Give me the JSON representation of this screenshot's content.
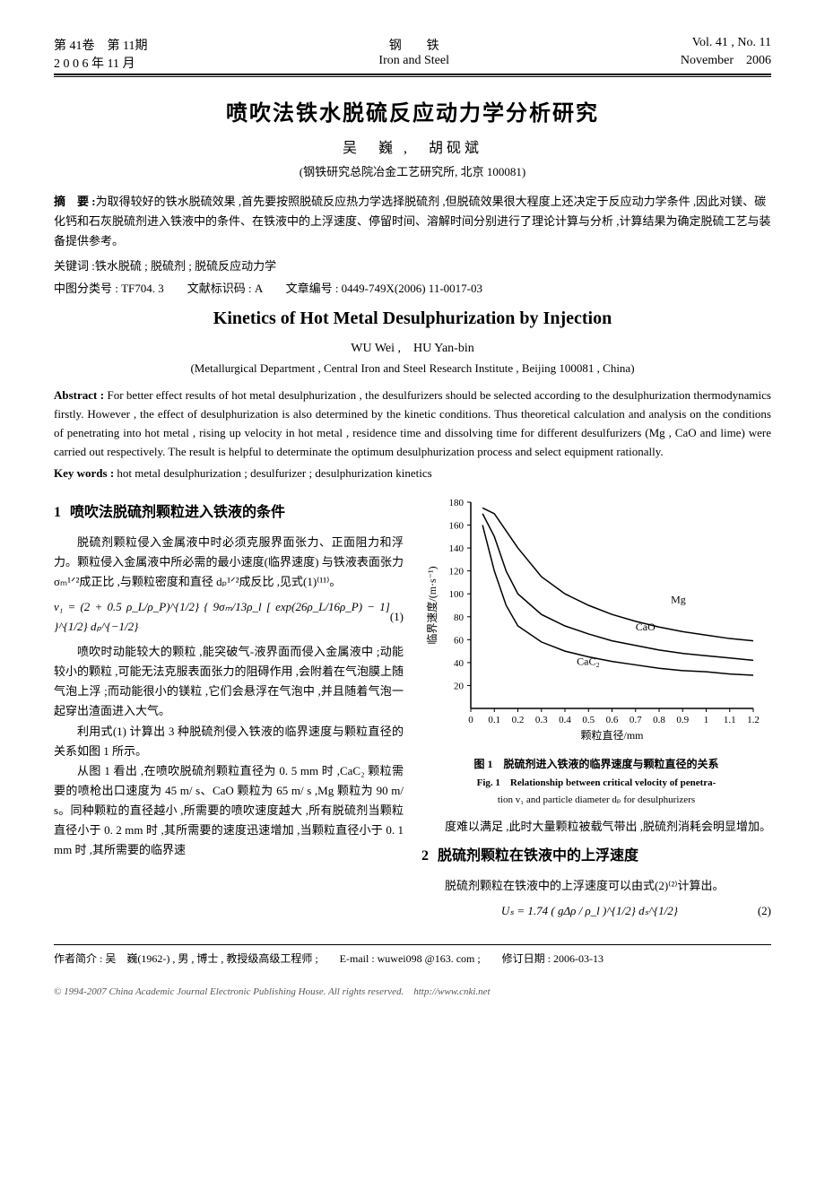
{
  "header": {
    "vol_issue_cn": "第 41卷　第 11期",
    "date_cn": "2 0 0 6 年 11 月",
    "journal_cn": "钢　　铁",
    "journal_en": "Iron and Steel",
    "vol_en": "Vol. 41 , No. 11",
    "date_en": "November　2006"
  },
  "title_cn": "喷吹法铁水脱硫反应动力学分析研究",
  "authors_cn": "吴　巍 ,　胡砚斌",
  "affil_cn": "(钢铁研究总院冶金工艺研究所, 北京 100081)",
  "abstract_cn_label": "摘　要 :",
  "abstract_cn": "为取得较好的铁水脱硫效果 ,首先要按照脱硫反应热力学选择脱硫剂 ,但脱硫效果很大程度上还决定于反应动力学条件 ,因此对镁、碳化钙和石灰脱硫剂进入铁液中的条件、在铁液中的上浮速度、停留时间、溶解时间分别进行了理论计算与分析 ,计算结果为确定脱硫工艺与装备提供参考。",
  "keywords_cn_label": "关键词 :",
  "keywords_cn": "铁水脱硫 ; 脱硫剂 ; 脱硫反应动力学",
  "class_cn": "中图分类号 : TF704. 3　　文献标识码 : A　　文章编号 : 0449-749X(2006) 11-0017-03",
  "title_en": "Kinetics of Hot Metal Desulphurization by Injection",
  "authors_en": "WU Wei ,　HU Yan-bin",
  "affil_en": "(Metallurgical Department , Central Iron and Steel Research Institute , Beijing 100081 , China)",
  "abstract_en_label": "Abstract :",
  "abstract_en": "For better effect results of hot metal desulphurization , the desulfurizers should be selected according to the desulphurization thermodynamics firstly. However , the effect of desulphurization is also determined by the kinetic conditions. Thus theoretical calculation and analysis on the conditions of penetrating into hot metal , rising up velocity in hot metal , residence time and dissolving time for different desulfurizers (Mg , CaO and lime) were carried out respectively. The result is helpful to determinate the optimum desulphurization process and select equipment rationally.",
  "keywords_en_label": "Key words :",
  "keywords_en": "hot metal desulphurization ; desulfurizer ; desulphurization kinetics",
  "sec1": {
    "num": "1",
    "title": "喷吹法脱硫剂颗粒进入铁液的条件",
    "p1": "脱硫剂颗粒侵入金属液中时必须克服界面张力、正面阻力和浮力。颗粒侵入金属液中所必需的最小速度(临界速度) 与铁液表面张力σₘ¹ᐟ²成正比 ,与颗粒密度和直径 dₚ¹ᐟ²成反比 ,见式(1)⁽¹¹⁾。",
    "eq1_body": "v₁ = (2 + 0.5 ρ_L/ρ_P)^{1/2} { 9σₘ/13ρ_l [ exp(26ρ_L/16ρ_P) − 1] }^{1/2} dₚ^{−1/2}",
    "eq1_num": "(1)",
    "p2": "喷吹时动能较大的颗粒 ,能突破气-液界面而侵入金属液中 ;动能较小的颗粒 ,可能无法克服表面张力的阻碍作用 ,会附着在气泡膜上随气泡上浮 ;而动能很小的镁粒 ,它们会悬浮在气泡中 ,并且随着气泡一起穿出渣面进入大气。",
    "p3": "利用式(1) 计算出 3 种脱硫剂侵入铁液的临界速度与颗粒直径的关系如图 1 所示。",
    "p4": "从图 1 看出 ,在喷吹脱硫剂颗粒直径为 0. 5 mm 时 ,CaC₂ 颗粒需要的喷枪出口速度为 45 m/ s、CaO 颗粒为 65 m/ s ,Mg 颗粒为 90 m/ s。同种颗粒的直径越小 ,所需要的喷吹速度越大 ,所有脱硫剂当颗粒直径小于 0. 2 mm 时 ,其所需要的速度迅速增加 ,当颗粒直径小于 0. 1 mm 时 ,其所需要的临界速"
  },
  "right": {
    "p1": "度难以满足 ,此时大量颗粒被载气带出 ,脱硫剂消耗会明显增加。"
  },
  "sec2": {
    "num": "2",
    "title": "脱硫剂颗粒在铁液中的上浮速度",
    "p1": "脱硫剂颗粒在铁液中的上浮速度可以由式(2)⁽²⁾计算出。",
    "eq2_body": "Uₛ = 1.74 ( gΔρ / ρ_l )^{1/2} dₛ^{1/2}",
    "eq2_num": "(2)"
  },
  "fig1": {
    "caption_cn": "图 1　脱硫剂进入铁液的临界速度与颗粒直径的关系",
    "caption_en_1": "Fig. 1　Relationship between critical velocity of penetra-",
    "caption_en_2": "tion v₁ and particle diameter dₚ for desulphurizers",
    "xlabel": "颗粒直径/mm",
    "ylabel": "临界速度/(m·s⁻¹)",
    "xlim": [
      0,
      1.2
    ],
    "ylim": [
      0,
      180
    ],
    "xticks": [
      0,
      0.1,
      0.2,
      0.3,
      0.4,
      0.5,
      0.6,
      0.7,
      0.8,
      0.9,
      1.0,
      1.1,
      1.2
    ],
    "yticks": [
      20,
      40,
      60,
      80,
      100,
      120,
      140,
      160,
      180
    ],
    "colors": {
      "axis": "#000000",
      "bg": "#ffffff",
      "line": "#000000"
    },
    "line_width": 1.5,
    "series": [
      {
        "label": "Mg",
        "label_x": 0.85,
        "label_y": 92,
        "x": [
          0.05,
          0.1,
          0.15,
          0.2,
          0.3,
          0.4,
          0.5,
          0.6,
          0.7,
          0.8,
          0.9,
          1.0,
          1.1,
          1.2
        ],
        "y": [
          175,
          170,
          155,
          140,
          115,
          100,
          90,
          82,
          76,
          71,
          67,
          64,
          61,
          59
        ]
      },
      {
        "label": "CaO",
        "label_x": 0.7,
        "label_y": 68,
        "x": [
          0.05,
          0.1,
          0.15,
          0.2,
          0.3,
          0.4,
          0.5,
          0.6,
          0.7,
          0.8,
          0.9,
          1.0,
          1.1,
          1.2
        ],
        "y": [
          170,
          150,
          120,
          100,
          82,
          72,
          65,
          59,
          55,
          51,
          48,
          46,
          44,
          42
        ]
      },
      {
        "label": "CaC₂",
        "label_x": 0.45,
        "label_y": 38,
        "x": [
          0.05,
          0.1,
          0.15,
          0.2,
          0.3,
          0.4,
          0.5,
          0.6,
          0.7,
          0.8,
          0.9,
          1.0,
          1.1,
          1.2
        ],
        "y": [
          160,
          120,
          90,
          72,
          58,
          50,
          45,
          41,
          38,
          35,
          33,
          32,
          30,
          29
        ]
      }
    ]
  },
  "footer": {
    "author_info": "作者简介 : 吴　巍(1962-) , 男 , 博士 , 教授级高级工程师 ;　　E-mail : wuwei098 @163. com ;　　修订日期 : 2006-03-13",
    "cnki": "© 1994-2007 China Academic Journal Electronic Publishing House. All rights reserved.　http://www.cnki.net"
  }
}
